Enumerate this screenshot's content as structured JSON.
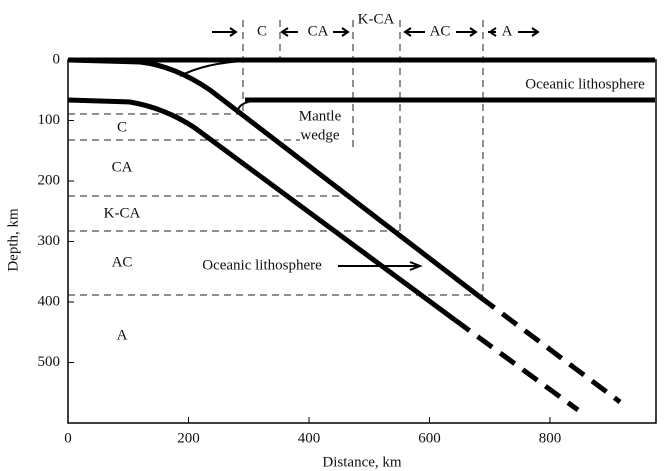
{
  "x_axis": {
    "label": "Distance, km",
    "lim": [
      0,
      975
    ],
    "ticks": [
      0,
      200,
      400,
      600,
      800
    ]
  },
  "y_axis": {
    "label": "Depth, km",
    "lim": [
      0,
      600
    ],
    "ticks": [
      0,
      100,
      200,
      300,
      400,
      500
    ]
  },
  "zones": [
    "C",
    "CA",
    "K-CA",
    "AC",
    "A"
  ],
  "top_zones": [
    "C",
    "CA",
    "K-CA",
    "AC",
    "A"
  ],
  "annotations": {
    "upper_plate": "Oceanic lithosphere",
    "mantle_wedge": [
      "Mantle",
      "wedge"
    ],
    "slab": "Oceanic lithosphere"
  }
}
